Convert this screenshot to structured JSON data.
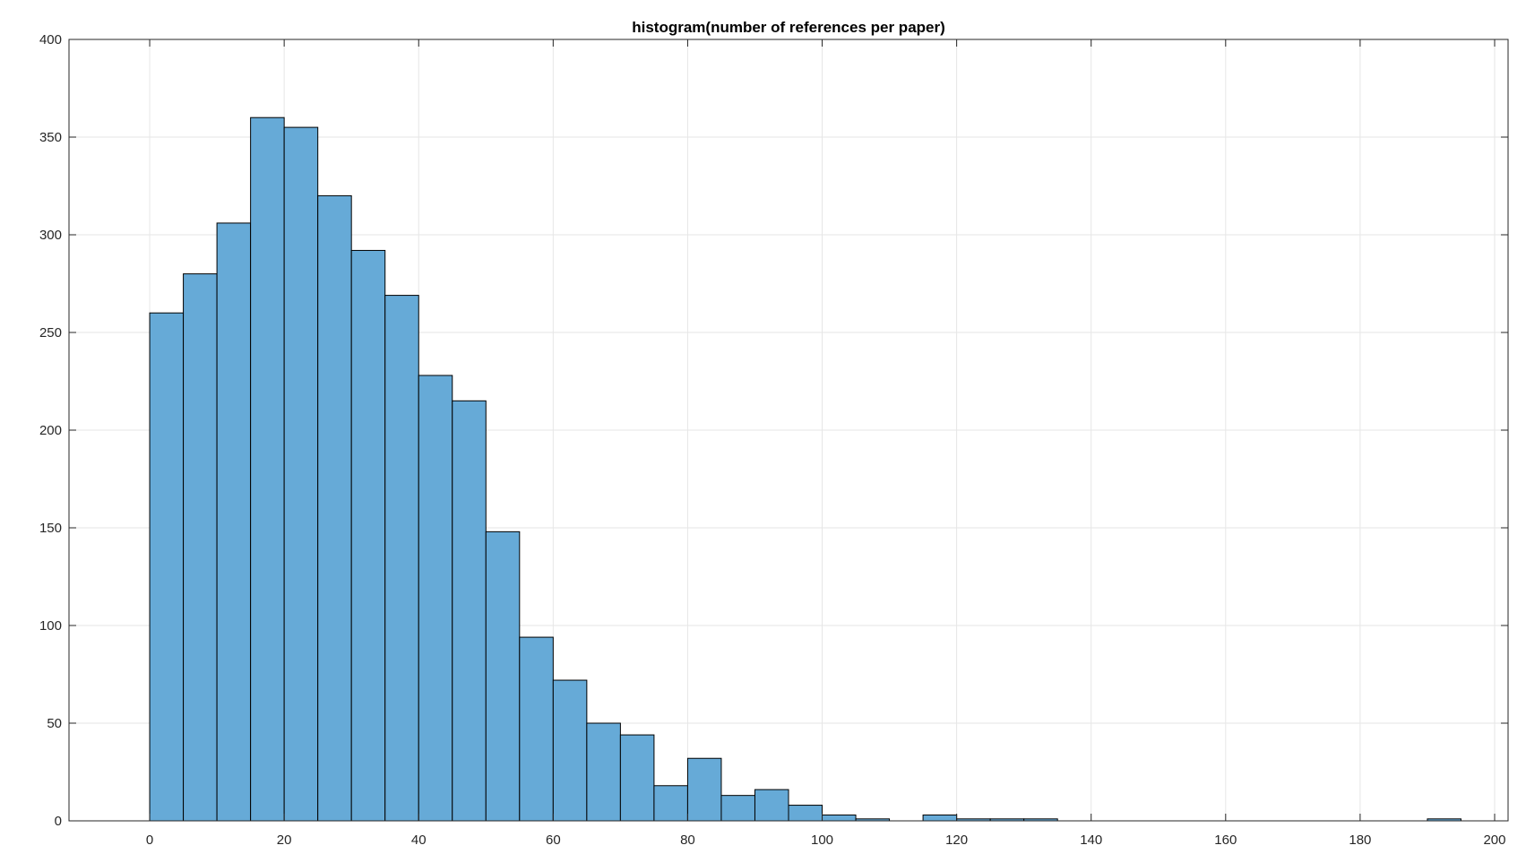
{
  "chart_data": {
    "type": "bar",
    "title": "histogram(number of references per paper)",
    "xlabel": "",
    "ylabel": "",
    "xlim": [
      -12,
      202
    ],
    "ylim": [
      0,
      400
    ],
    "grid": true,
    "bin_width": 5,
    "bin_edges_start": 0,
    "x_ticks": [
      "0",
      "20",
      "40",
      "60",
      "80",
      "100",
      "120",
      "140",
      "160",
      "180",
      "200"
    ],
    "y_ticks": [
      "0",
      "50",
      "100",
      "150",
      "200",
      "250",
      "300",
      "350",
      "400"
    ],
    "bins": [
      {
        "x0": 0,
        "x1": 5,
        "value": 260
      },
      {
        "x0": 5,
        "x1": 10,
        "value": 280
      },
      {
        "x0": 10,
        "x1": 15,
        "value": 306
      },
      {
        "x0": 15,
        "x1": 20,
        "value": 360
      },
      {
        "x0": 20,
        "x1": 25,
        "value": 355
      },
      {
        "x0": 25,
        "x1": 30,
        "value": 320
      },
      {
        "x0": 30,
        "x1": 35,
        "value": 292
      },
      {
        "x0": 35,
        "x1": 40,
        "value": 269
      },
      {
        "x0": 40,
        "x1": 45,
        "value": 228
      },
      {
        "x0": 45,
        "x1": 50,
        "value": 215
      },
      {
        "x0": 50,
        "x1": 55,
        "value": 148
      },
      {
        "x0": 55,
        "x1": 60,
        "value": 94
      },
      {
        "x0": 60,
        "x1": 65,
        "value": 72
      },
      {
        "x0": 65,
        "x1": 70,
        "value": 50
      },
      {
        "x0": 70,
        "x1": 75,
        "value": 44
      },
      {
        "x0": 75,
        "x1": 80,
        "value": 18
      },
      {
        "x0": 80,
        "x1": 85,
        "value": 32
      },
      {
        "x0": 85,
        "x1": 90,
        "value": 13
      },
      {
        "x0": 90,
        "x1": 95,
        "value": 16
      },
      {
        "x0": 95,
        "x1": 100,
        "value": 8
      },
      {
        "x0": 100,
        "x1": 105,
        "value": 3
      },
      {
        "x0": 105,
        "x1": 110,
        "value": 1
      },
      {
        "x0": 110,
        "x1": 115,
        "value": 0
      },
      {
        "x0": 115,
        "x1": 120,
        "value": 3
      },
      {
        "x0": 120,
        "x1": 125,
        "value": 1
      },
      {
        "x0": 125,
        "x1": 130,
        "value": 1
      },
      {
        "x0": 130,
        "x1": 135,
        "value": 1
      },
      {
        "x0": 190,
        "x1": 195,
        "value": 1
      }
    ],
    "colors": {
      "bar_fill": "#66aad7",
      "bar_edge": "#000000",
      "grid": "#e6e6e6",
      "axis": "#262626"
    }
  }
}
